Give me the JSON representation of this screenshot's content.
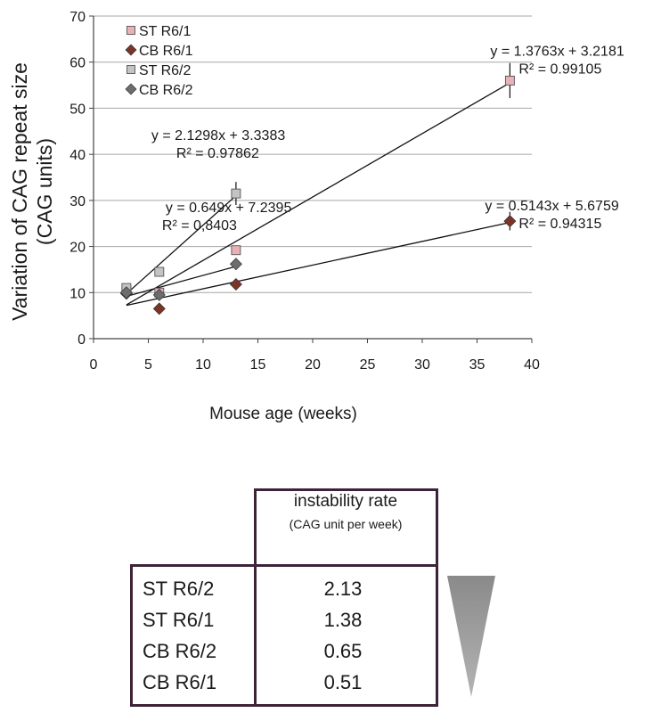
{
  "chart_data": {
    "type": "scatter",
    "xlabel": "Mouse age (weeks)",
    "ylabel_lines": [
      "Variation of CAG repeat size",
      "(CAG units)"
    ],
    "xlim": [
      0,
      40
    ],
    "ylim": [
      0,
      70
    ],
    "xticks": [
      0,
      5,
      10,
      15,
      20,
      25,
      30,
      35,
      40
    ],
    "yticks": [
      0,
      10,
      20,
      30,
      40,
      50,
      60,
      70
    ],
    "grid": "horizontal",
    "legend_position": "top-left",
    "series": [
      {
        "name": "ST R6/1",
        "marker": "square",
        "color": "#e7b1b5",
        "points": [
          {
            "x": 3,
            "y": 10.5
          },
          {
            "x": 6,
            "y": 10
          },
          {
            "x": 13,
            "y": 19.2
          },
          {
            "x": 38,
            "y": 56
          }
        ],
        "errors": [
          0,
          0,
          0,
          3.8
        ],
        "trend": {
          "slope": 1.3763,
          "intercept": 3.2181,
          "x_range": [
            3,
            38
          ]
        },
        "equation": "y = 1.3763x + 3.2181",
        "r2": "R² = 0.99105"
      },
      {
        "name": "CB R6/1",
        "marker": "diamond",
        "color": "#7a3526",
        "points": [
          {
            "x": 3,
            "y": 9.8
          },
          {
            "x": 6,
            "y": 6.5
          },
          {
            "x": 13,
            "y": 11.8
          },
          {
            "x": 38,
            "y": 25.5
          }
        ],
        "errors": [
          0,
          0,
          0,
          2
        ],
        "trend": {
          "slope": 0.5143,
          "intercept": 5.6759,
          "x_range": [
            3,
            38
          ]
        },
        "equation": "y = 0.5143x + 5.6759",
        "r2": "R² = 0.94315"
      },
      {
        "name": "ST R6/2",
        "marker": "square",
        "color": "#c4c4c4",
        "points": [
          {
            "x": 3,
            "y": 11
          },
          {
            "x": 6,
            "y": 14.5
          },
          {
            "x": 13,
            "y": 31.5
          }
        ],
        "errors": [
          0,
          0,
          2.5
        ],
        "trend": {
          "slope": 2.1298,
          "intercept": 3.3383,
          "x_range": [
            3,
            13
          ]
        },
        "equation": "y = 2.1298x + 3.3383",
        "r2": "R² = 0.97862"
      },
      {
        "name": "CB R6/2",
        "marker": "diamond",
        "color": "#6d6d6d",
        "points": [
          {
            "x": 3,
            "y": 10
          },
          {
            "x": 6,
            "y": 9.5
          },
          {
            "x": 13,
            "y": 16.2
          }
        ],
        "errors": [
          0,
          0,
          0
        ],
        "trend": {
          "slope": 0.649,
          "intercept": 7.2395,
          "x_range": [
            3,
            13
          ]
        },
        "equation": "y = 0.649x + 7.2395",
        "r2": "R² = 0,8403"
      }
    ]
  },
  "table": {
    "header_title": "instability rate",
    "header_subtitle": "(CAG unit per week)",
    "rows": [
      {
        "label": "ST R6/2",
        "value": "2.13"
      },
      {
        "label": "ST R6/1",
        "value": "1.38"
      },
      {
        "label": "CB R6/2",
        "value": "0.65"
      },
      {
        "label": "CB R6/1",
        "value": "0.51"
      }
    ],
    "trend_indicator": "decreasing-triangle"
  }
}
